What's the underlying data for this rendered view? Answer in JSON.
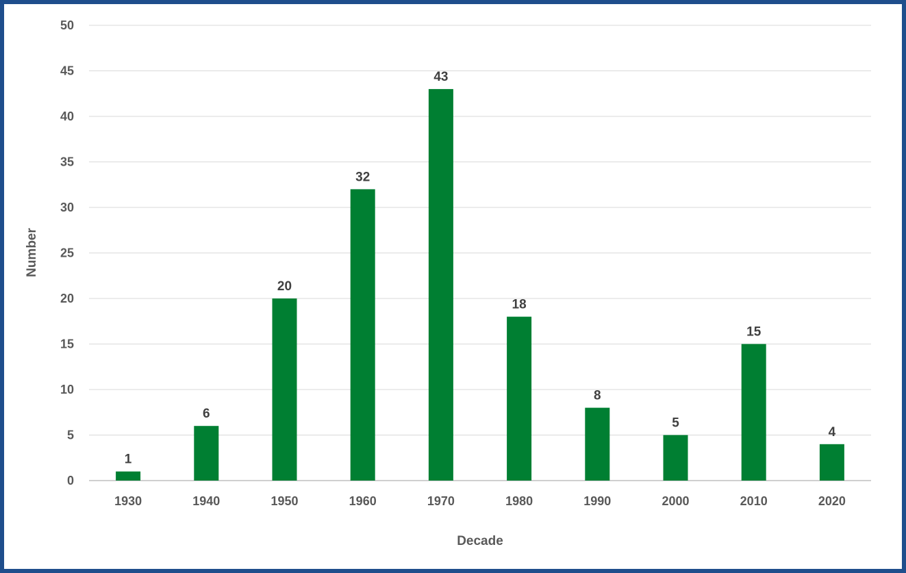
{
  "chart_data": {
    "type": "bar",
    "title": "",
    "xlabel": "Decade",
    "ylabel": "Number",
    "categories": [
      "1930",
      "1940",
      "1950",
      "1960",
      "1970",
      "1980",
      "1990",
      "2000",
      "2010",
      "2020"
    ],
    "values": [
      1,
      6,
      20,
      32,
      43,
      18,
      8,
      5,
      15,
      4
    ],
    "data_labels": [
      "1",
      "6",
      "20",
      "32",
      "43",
      "18",
      "8",
      "5",
      "15",
      "4"
    ],
    "y_ticks": [
      "0",
      "5",
      "10",
      "15",
      "20",
      "25",
      "30",
      "35",
      "40",
      "45",
      "50"
    ],
    "ylim": [
      0,
      50
    ],
    "grid": true,
    "legend": "none",
    "bar_color": "#007f32",
    "frame_color": "#1f4e8c"
  }
}
